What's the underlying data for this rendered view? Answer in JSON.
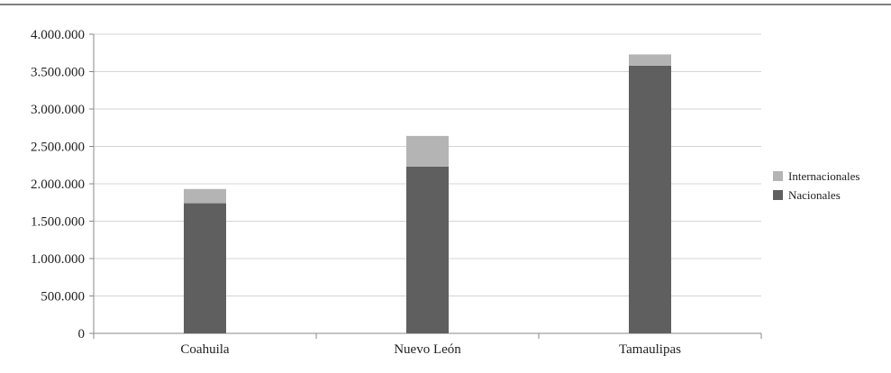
{
  "chart_data": {
    "type": "bar",
    "stacked": true,
    "categories": [
      "Coahuila",
      "Nuevo León",
      "Tamaulipas"
    ],
    "series": [
      {
        "name": "Nacionales",
        "values": [
          1740000,
          2230000,
          3580000
        ],
        "color": "#5f5f5f"
      },
      {
        "name": "Internacionales",
        "values": [
          190000,
          410000,
          150000
        ],
        "color": "#b4b4b4"
      }
    ],
    "ylim": [
      0,
      4000000
    ],
    "yticks": [
      {
        "value": 0,
        "label": "0"
      },
      {
        "value": 500000,
        "label": "500.000"
      },
      {
        "value": 1000000,
        "label": "1.000.000"
      },
      {
        "value": 1500000,
        "label": "1.500.000"
      },
      {
        "value": 2000000,
        "label": "2.000.000"
      },
      {
        "value": 2500000,
        "label": "2.500.000"
      },
      {
        "value": 3000000,
        "label": "3.000.000"
      },
      {
        "value": 3500000,
        "label": "3.500.000"
      },
      {
        "value": 4000000,
        "label": "4.000.000"
      }
    ],
    "grid": true,
    "legend_position": "right",
    "legend_order": [
      "Internacionales",
      "Nacionales"
    ],
    "gridline_color": "#d4d4d4",
    "axis_color": "#8a8a8a"
  }
}
